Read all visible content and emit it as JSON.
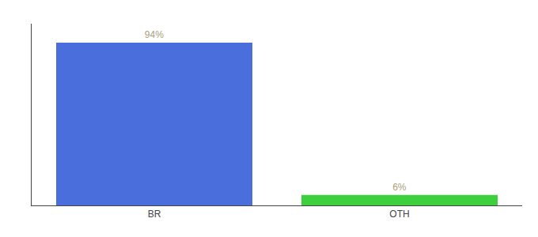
{
  "chart_data": {
    "type": "bar",
    "categories": [
      "BR",
      "OTH"
    ],
    "values": [
      94,
      6
    ],
    "value_labels": [
      "94%",
      "6%"
    ],
    "data_labels": true,
    "colors": [
      "#4a6edb",
      "#3ecf3e"
    ],
    "ylim": [
      0,
      105
    ],
    "yticks": [],
    "tick_labels": "x",
    "grid": false
  }
}
